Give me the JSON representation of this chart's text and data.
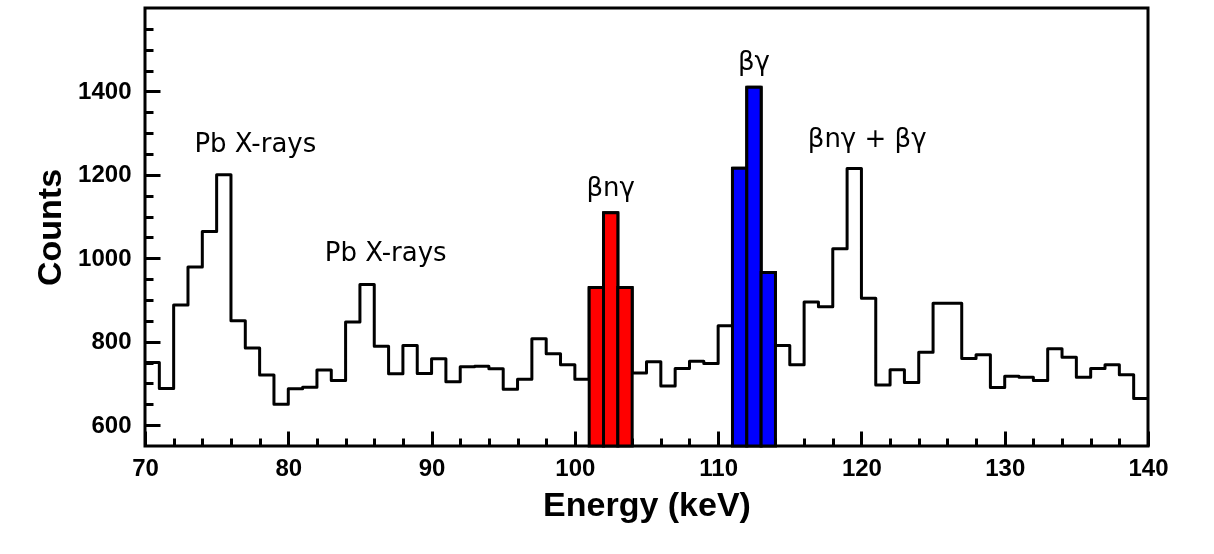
{
  "chart_data": {
    "type": "step",
    "xlabel": "Energy (keV)",
    "ylabel": "Counts",
    "series": [
      {
        "color": "#000000",
        "x": [
          70,
          71,
          72,
          73,
          74,
          75,
          76,
          77,
          78,
          79,
          80,
          81,
          82,
          83,
          84,
          85,
          86,
          87,
          88,
          89,
          90,
          91,
          92,
          93,
          94,
          95,
          96,
          97,
          98,
          99,
          100,
          101,
          102,
          103,
          104,
          105,
          106,
          107,
          108,
          109,
          110,
          111,
          112,
          113,
          114,
          115,
          116,
          117,
          118,
          119,
          120,
          121,
          122,
          123,
          124,
          125,
          126,
          127,
          128,
          129,
          130,
          131,
          132,
          133,
          134,
          135,
          136,
          137,
          138,
          139,
          140
        ],
        "values": [
          750,
          688,
          888,
          979,
          1064,
          1200,
          850,
          785,
          720,
          650,
          687,
          691,
          732,
          707,
          847,
          937,
          789,
          723,
          791,
          724,
          759,
          704,
          740,
          741,
          735,
          686,
          710,
          807,
          771,
          745,
          710,
          930,
          1109,
          930,
          725,
          752,
          694,
          736,
          753,
          748,
          838,
          1216,
          1410,
          966,
          791,
          745,
          895,
          884,
          1023,
          1215,
          904,
          696,
          733,
          702,
          775,
          892,
          892,
          760,
          769,
          690,
          717,
          715,
          707,
          783,
          763,
          715,
          736,
          745,
          721,
          664,
          664
        ]
      },
      {
        "type": "bar",
        "x": [
          101.5,
          102.5,
          103.5,
          111.5,
          112.5,
          113.5
        ],
        "values": [
          930,
          1109,
          930,
          1216,
          1410,
          966
        ],
        "colors": [
          "#ff0000",
          "#ff0000",
          "#ff0000",
          "#0000ff",
          "#0000ff",
          "#0000ff"
        ]
      }
    ],
    "xlim": [
      70,
      140
    ],
    "ylim": [
      550,
      1600
    ],
    "xticks": [
      70,
      {
        "value": 72,
        "label": null
      },
      {
        "value": 74,
        "label": null
      },
      {
        "value": 76,
        "label": null
      },
      {
        "value": 78,
        "label": null
      },
      80,
      {
        "value": 82,
        "label": null
      },
      {
        "value": 84,
        "label": null
      },
      {
        "value": 86,
        "label": null
      },
      {
        "value": 88,
        "label": null
      },
      90,
      {
        "value": 92,
        "label": null
      },
      {
        "value": 94,
        "label": null
      },
      {
        "value": 96,
        "label": null
      },
      {
        "value": 98,
        "label": null
      },
      100,
      {
        "value": 102,
        "label": null
      },
      {
        "value": 104,
        "label": null
      },
      {
        "value": 106,
        "label": null
      },
      {
        "value": 108,
        "label": null
      },
      110,
      {
        "value": 112,
        "label": null
      },
      {
        "value": 114,
        "label": null
      },
      {
        "value": 116,
        "label": null
      },
      {
        "value": 118,
        "label": null
      },
      120,
      {
        "value": 122,
        "label": null
      },
      {
        "value": 124,
        "label": null
      },
      {
        "value": 126,
        "label": null
      },
      {
        "value": 128,
        "label": null
      },
      130,
      {
        "value": 132,
        "label": null
      },
      {
        "value": 134,
        "label": null
      },
      {
        "value": 136,
        "label": null
      },
      {
        "value": 138,
        "label": null
      },
      140
    ],
    "yticks": [
      600,
      {
        "value": 650,
        "label": null
      },
      {
        "value": 700,
        "label": null
      },
      {
        "value": 750,
        "label": null
      },
      800,
      {
        "value": 850,
        "label": null
      },
      {
        "value": 900,
        "label": null
      },
      {
        "value": 950,
        "label": null
      },
      1000,
      {
        "value": 1050,
        "label": null
      },
      {
        "value": 1100,
        "label": null
      },
      {
        "value": 1150,
        "label": null
      },
      1200,
      {
        "value": 1250,
        "label": null
      },
      {
        "value": 1300,
        "label": null
      },
      {
        "value": 1350,
        "label": null
      },
      1400,
      {
        "value": 1450,
        "label": null
      },
      {
        "value": 1500,
        "label": null
      },
      {
        "value": 1550,
        "label": null
      }
    ],
    "annotations": [
      "Pb X-rays",
      "Pb X-rays",
      {
        "text": "βnγ",
        "x": 102.5,
        "y": 1109
      },
      {
        "text": "βγ",
        "x": 112.5,
        "y": 1410
      },
      "βnγ + βγ"
    ]
  }
}
